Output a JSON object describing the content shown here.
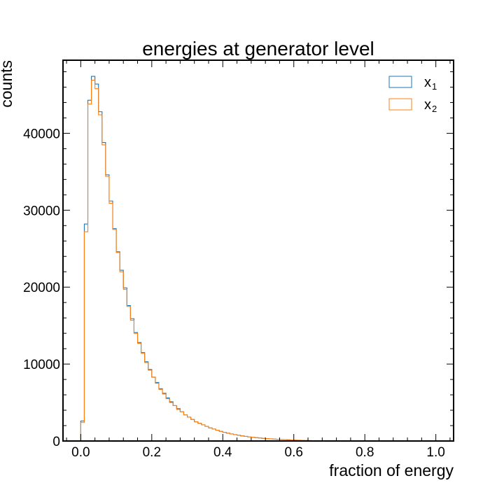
{
  "chart_data": {
    "type": "histogram",
    "title": "energies at generator level",
    "xlabel": "fraction of energy",
    "ylabel": "counts",
    "xlim": [
      -0.05,
      1.05
    ],
    "ylim": [
      0,
      49500
    ],
    "x_ticks": [
      "0.0",
      "0.2",
      "0.4",
      "0.6",
      "0.8",
      "1.0"
    ],
    "y_ticks": [
      "0",
      "10000",
      "20000",
      "30000",
      "40000"
    ],
    "bin_width": 0.01,
    "bin_start": 0.0,
    "legend_position": "top-right",
    "series": [
      {
        "name": "x",
        "subscript": "1",
        "color": "#1f77b4",
        "values": [
          2600,
          28200,
          44300,
          47400,
          46400,
          42800,
          38800,
          34600,
          31200,
          27600,
          24600,
          22200,
          19900,
          17600,
          15900,
          14100,
          12800,
          11500,
          10300,
          9300,
          8300,
          7600,
          6800,
          6200,
          5600,
          5100,
          4600,
          4200,
          3800,
          3400,
          3100,
          2800,
          2500,
          2300,
          2100,
          1900,
          1700,
          1550,
          1400,
          1250,
          1130,
          1020,
          920,
          830,
          750,
          670,
          600,
          540,
          490,
          440,
          390,
          350,
          310,
          280,
          250,
          220,
          190,
          170,
          150,
          130,
          110,
          95,
          80,
          65,
          50,
          40,
          30,
          20,
          12,
          6
        ]
      },
      {
        "name": "x",
        "subscript": "2",
        "color": "#ff7f0e",
        "values": [
          2400,
          27200,
          43800,
          46900,
          45800,
          42400,
          38500,
          34400,
          30900,
          27500,
          24500,
          22000,
          19700,
          17500,
          15700,
          14000,
          12700,
          11400,
          10200,
          9200,
          8300,
          7500,
          6700,
          6100,
          5500,
          5000,
          4600,
          4100,
          3800,
          3400,
          3100,
          2800,
          2500,
          2300,
          2100,
          1900,
          1700,
          1550,
          1400,
          1250,
          1130,
          1020,
          920,
          830,
          750,
          670,
          600,
          540,
          490,
          440,
          390,
          350,
          310,
          280,
          250,
          220,
          190,
          170,
          150,
          130,
          110,
          95,
          80,
          65,
          50,
          40,
          30,
          20,
          12,
          6
        ]
      }
    ]
  }
}
